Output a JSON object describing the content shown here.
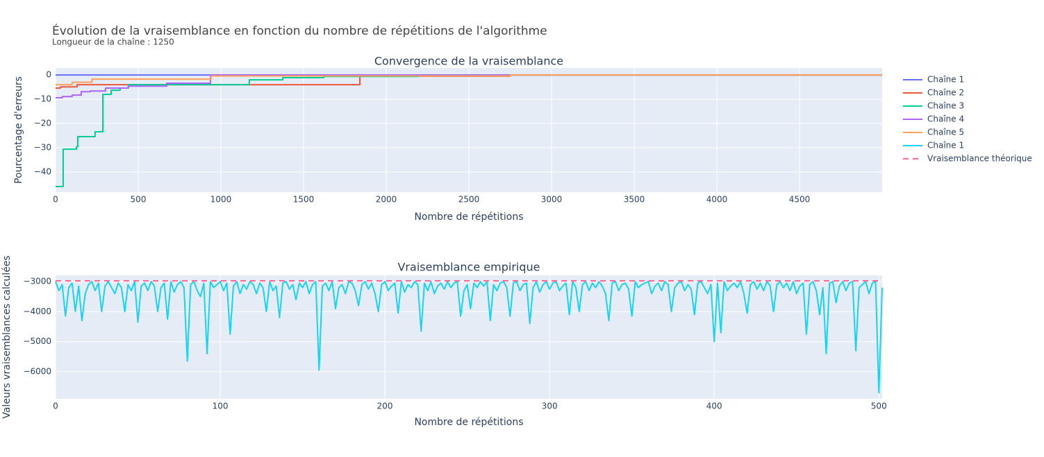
{
  "title": "Évolution de la vraisemblance en fonction du nombre de répétitions de l'algorithme",
  "subtitle": "Longueur de la chaîne : 1250",
  "legend": "right",
  "chart_data": [
    {
      "type": "line",
      "line_shape": "hv",
      "title": "Convergence de la vraisemblance",
      "x_label": "Nombre de répétitions",
      "y_label": "Pourcentage d'erreurs",
      "xlim": [
        0,
        5000
      ],
      "ylim": [
        -48.3,
        2.9
      ],
      "xticks": [
        0,
        500,
        1000,
        1500,
        2000,
        2500,
        3000,
        3500,
        4000,
        4500
      ],
      "yticks": [
        {
          "value": -40,
          "label": "−40"
        },
        {
          "value": -30,
          "label": "−30"
        },
        {
          "value": -20,
          "label": "−20"
        },
        {
          "value": -10,
          "label": "−10"
        },
        0
      ],
      "grid": true,
      "series": [
        {
          "name": "Chaîne 1",
          "color": "#636efa",
          "x": [
            0,
            5000
          ],
          "values": [
            0,
            0
          ]
        },
        {
          "name": "Chaîne 2",
          "color": "#ef553b",
          "x": [
            0,
            30,
            130,
            1840,
            2750,
            5000
          ],
          "values": [
            -5.4,
            -4.9,
            -4,
            -0.5,
            0,
            0
          ]
        },
        {
          "name": "Chaîne 3",
          "color": "#00cc96",
          "x": [
            0,
            46,
            126,
            134,
            239,
            286,
            336,
            390,
            440,
            1172,
            1374,
            1622,
            2197,
            5000
          ],
          "values": [
            -46,
            -30.6,
            -29.6,
            -25.4,
            -23.4,
            -8,
            -6.3,
            -5.4,
            -4,
            -2,
            -1.1,
            -0.6,
            0,
            0
          ]
        },
        {
          "name": "Chaîne 4",
          "color": "#ab63fa",
          "x": [
            0,
            40,
            100,
            155,
            210,
            302,
            440,
            672,
            937,
            5000
          ],
          "values": [
            -9.4,
            -8.9,
            -8.3,
            -6.9,
            -6.6,
            -5.4,
            -4.6,
            -3.4,
            0,
            0
          ]
        },
        {
          "name": "Chaîne 5",
          "color": "#ffa15a",
          "x": [
            0,
            100,
            220,
            940,
            2750,
            5000
          ],
          "values": [
            -4,
            -3,
            -1.7,
            -0.4,
            0,
            0
          ]
        }
      ]
    },
    {
      "type": "line",
      "title": "Vraisemblance empirique",
      "x_label": "Nombre de répétitions",
      "y_label": "Valeurs vraisemblances calculées",
      "xlim": [
        0,
        502
      ],
      "ylim": [
        -6900,
        -2790
      ],
      "xticks": [
        0,
        100,
        200,
        300,
        400,
        500
      ],
      "yticks": [
        {
          "value": -6000,
          "label": "−6000"
        },
        {
          "value": -5000,
          "label": "−5000"
        },
        {
          "value": -4000,
          "label": "−4000"
        },
        {
          "value": -3000,
          "label": "−3000"
        }
      ],
      "grid": true,
      "series": [
        {
          "name": "Chaîne 1",
          "color": "#19d3f3",
          "x": [
            0,
            2,
            4,
            6,
            8,
            10,
            12,
            14,
            16,
            18,
            20,
            22,
            24,
            26,
            28,
            30,
            32,
            34,
            36,
            38,
            40,
            42,
            44,
            46,
            48,
            50,
            52,
            54,
            56,
            58,
            60,
            62,
            64,
            66,
            68,
            70,
            72,
            74,
            76,
            78,
            80,
            82,
            84,
            86,
            88,
            90,
            92,
            94,
            96,
            98,
            100,
            102,
            104,
            106,
            108,
            110,
            112,
            114,
            116,
            118,
            120,
            122,
            124,
            126,
            128,
            130,
            132,
            134,
            136,
            138,
            140,
            142,
            144,
            146,
            148,
            150,
            152,
            154,
            156,
            158,
            160,
            162,
            164,
            166,
            168,
            170,
            172,
            174,
            176,
            178,
            180,
            182,
            184,
            186,
            188,
            190,
            192,
            194,
            196,
            198,
            200,
            202,
            204,
            206,
            208,
            210,
            212,
            214,
            216,
            218,
            220,
            222,
            224,
            226,
            228,
            230,
            232,
            234,
            236,
            238,
            240,
            242,
            244,
            246,
            248,
            250,
            252,
            254,
            256,
            258,
            260,
            262,
            264,
            266,
            268,
            270,
            272,
            274,
            276,
            278,
            280,
            282,
            284,
            286,
            288,
            290,
            292,
            294,
            296,
            298,
            300,
            302,
            304,
            306,
            308,
            310,
            312,
            314,
            316,
            318,
            320,
            322,
            324,
            326,
            328,
            330,
            332,
            334,
            336,
            338,
            340,
            342,
            344,
            346,
            348,
            350,
            352,
            354,
            356,
            358,
            360,
            362,
            364,
            366,
            368,
            370,
            372,
            374,
            376,
            378,
            380,
            382,
            384,
            386,
            388,
            390,
            392,
            394,
            396,
            398,
            400,
            402,
            404,
            406,
            408,
            410,
            412,
            414,
            416,
            418,
            420,
            422,
            424,
            426,
            428,
            430,
            432,
            434,
            436,
            438,
            440,
            442,
            444,
            446,
            448,
            450,
            452,
            454,
            456,
            458,
            460,
            462,
            464,
            466,
            468,
            470,
            472,
            474,
            476,
            478,
            480,
            482,
            484,
            486,
            488,
            490,
            492,
            494,
            496,
            498,
            500,
            502
          ],
          "values": [
            -3000,
            -3300,
            -3100,
            -4150,
            -3200,
            -3050,
            -4000,
            -3150,
            -4300,
            -3400,
            -3100,
            -3000,
            -3300,
            -3050,
            -4000,
            -3150,
            -3000,
            -3200,
            -3400,
            -3050,
            -3200,
            -4000,
            -3100,
            -3300,
            -3000,
            -4350,
            -3150,
            -3050,
            -3300,
            -3000,
            -3150,
            -4000,
            -3200,
            -3050,
            -4250,
            -3000,
            -3350,
            -3100,
            -3000,
            -3200,
            -5650,
            -3100,
            -3000,
            -3300,
            -3500,
            -3050,
            -5400,
            -3000,
            -3200,
            -3100,
            -3000,
            -3300,
            -3050,
            -4750,
            -3150,
            -3000,
            -3400,
            -3100,
            -3250,
            -3000,
            -3100,
            -3400,
            -3050,
            -3200,
            -4000,
            -3000,
            -3300,
            -3150,
            -4200,
            -3050,
            -3000,
            -3250,
            -3100,
            -3600,
            -3050,
            -3200,
            -3000,
            -3400,
            -3100,
            -3000,
            -5950,
            -3150,
            -3050,
            -3300,
            -3000,
            -3900,
            -3200,
            -3100,
            -3400,
            -3000,
            -3050,
            -3300,
            -3800,
            -3100,
            -3000,
            -3250,
            -3050,
            -3400,
            -4000,
            -3100,
            -3000,
            -3300,
            -3150,
            -3050,
            -4050,
            -3000,
            -3350,
            -3100,
            -3200,
            -3000,
            -3100,
            -4650,
            -3050,
            -3300,
            -3000,
            -3400,
            -3150,
            -3050,
            -3250,
            -3000,
            -3200,
            -3050,
            -3000,
            -4150,
            -3300,
            -3100,
            -3900,
            -3050,
            -3200,
            -3000,
            -3150,
            -3000,
            -4300,
            -3100,
            -3300,
            -3050,
            -3000,
            -3200,
            -4150,
            -3050,
            -3000,
            -3300,
            -3100,
            -3050,
            -4400,
            -3200,
            -3000,
            -3350,
            -3100,
            -3000,
            -3250,
            -3050,
            -3000,
            -3300,
            -3150,
            -3050,
            -4100,
            -3000,
            -3200,
            -4000,
            -3100,
            -3000,
            -3300,
            -3050,
            -3200,
            -3000,
            -3150,
            -3400,
            -4300,
            -3050,
            -3000,
            -3300,
            -3100,
            -3050,
            -3250,
            -4150,
            -3000,
            -3200,
            -3100,
            -3050,
            -3000,
            -3400,
            -3150,
            -3050,
            -3300,
            -3000,
            -3100,
            -4000,
            -3200,
            -3050,
            -3000,
            -3300,
            -3100,
            -3250,
            -4100,
            -3050,
            -3000,
            -3200,
            -3400,
            -3100,
            -5000,
            -3050,
            -4700,
            -3000,
            -3300,
            -3150,
            -3050,
            -3200,
            -3000,
            -3400,
            -4050,
            -3100,
            -3000,
            -3250,
            -3050,
            -3300,
            -3000,
            -3150,
            -4000,
            -3100,
            -3000,
            -3200,
            -3050,
            -3300,
            -3000,
            -3400,
            -3150,
            -3050,
            -4750,
            -3100,
            -3000,
            -3300,
            -4100,
            -3200,
            -5400,
            -3050,
            -3000,
            -3700,
            -3150,
            -3000,
            -3300,
            -3050,
            -3000,
            -5300,
            -3200,
            -3100,
            -3000,
            -3400,
            -3050,
            -3000,
            -6700,
            -3200
          ]
        },
        {
          "name": "Vraisemblance théorique",
          "color": "#ff6692",
          "dash": "dash",
          "x": [
            0,
            502
          ],
          "values": [
            -2975,
            -2975
          ]
        }
      ]
    }
  ]
}
